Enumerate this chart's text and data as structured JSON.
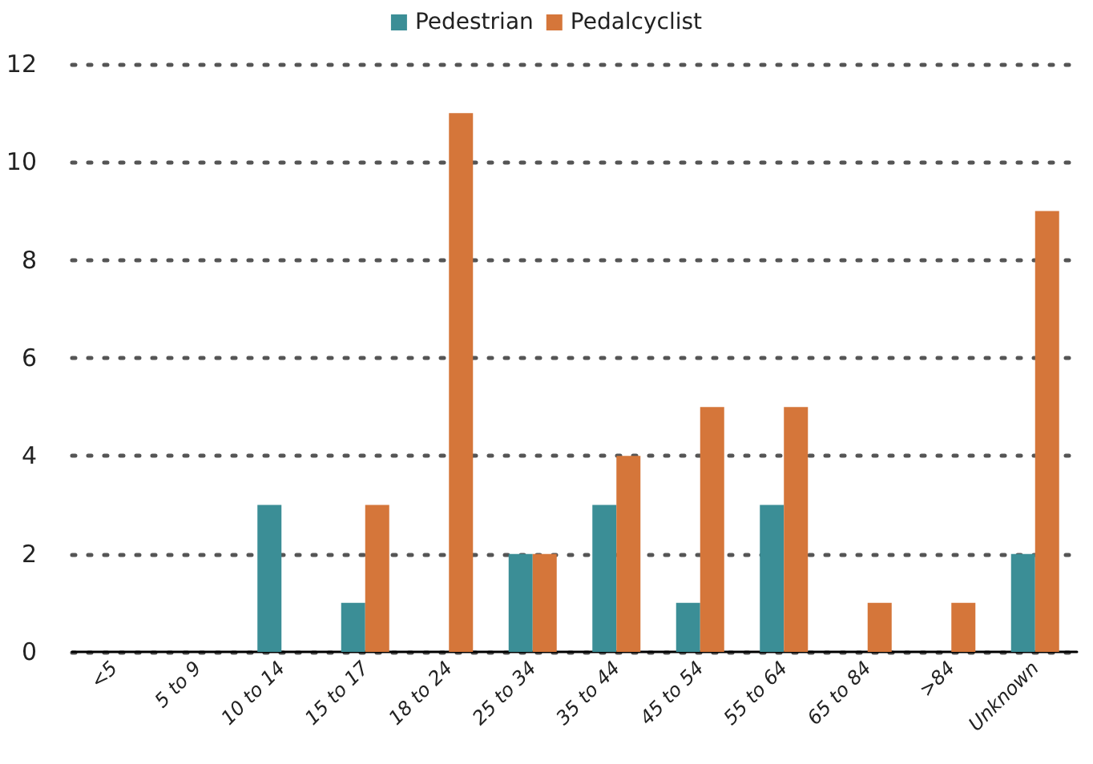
{
  "chart_data": {
    "type": "bar",
    "categories": [
      "<5",
      "5 to 9",
      "10 to 14",
      "15 to 17",
      "18 to 24",
      "25 to 34",
      "35 to 44",
      "45 to 54",
      "55 to 64",
      "65 to 84",
      ">84",
      "Unknown"
    ],
    "series": [
      {
        "name": "Pedestrian",
        "color": "#3b8e96",
        "values": [
          0,
          0,
          3,
          1,
          0,
          2,
          3,
          1,
          3,
          0,
          0,
          2
        ]
      },
      {
        "name": "Pedalcyclist",
        "color": "#d5763a",
        "values": [
          0,
          0,
          0,
          3,
          11,
          2,
          4,
          5,
          5,
          1,
          1,
          9
        ]
      }
    ],
    "ylim": [
      0,
      12
    ],
    "yticks": [
      0,
      2,
      4,
      6,
      8,
      10,
      12
    ],
    "grid": "y",
    "legend": "top"
  }
}
